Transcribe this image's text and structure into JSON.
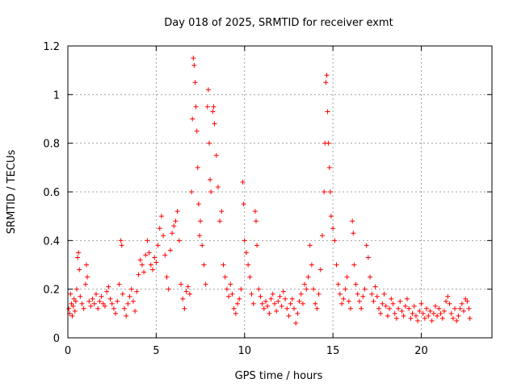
{
  "chart_data": {
    "type": "scatter",
    "title": "Day 018 of 2025, SRMTID for receiver exmt",
    "xlabel": "GPS time / hours",
    "ylabel": "SRMTID / TECUs",
    "xlim": [
      0,
      24
    ],
    "ylim": [
      0,
      1.2
    ],
    "xticks": [
      0,
      5,
      10,
      15,
      20
    ],
    "xtick_labels": [
      "0",
      "5",
      "10",
      "15",
      "20"
    ],
    "yticks": [
      0,
      0.2,
      0.4,
      0.6,
      0.8,
      1.0,
      1.2
    ],
    "ytick_labels": [
      "0",
      "0.2",
      "0.4",
      "0.6",
      "0.8",
      "1",
      "1.2"
    ],
    "grid": true,
    "marker": "+",
    "color": "#ff0000",
    "series": [
      {
        "name": "SRMTID",
        "points": [
          [
            0.05,
            0.12
          ],
          [
            0.1,
            0.1
          ],
          [
            0.15,
            0.18
          ],
          [
            0.2,
            0.14
          ],
          [
            0.25,
            0.09
          ],
          [
            0.3,
            0.13
          ],
          [
            0.35,
            0.16
          ],
          [
            0.4,
            0.11
          ],
          [
            0.45,
            0.15
          ],
          [
            0.5,
            0.2
          ],
          [
            0.55,
            0.33
          ],
          [
            0.6,
            0.35
          ],
          [
            0.65,
            0.28
          ],
          [
            0.7,
            0.17
          ],
          [
            0.8,
            0.14
          ],
          [
            0.9,
            0.12
          ],
          [
            1.0,
            0.22
          ],
          [
            1.05,
            0.3
          ],
          [
            1.1,
            0.25
          ],
          [
            1.2,
            0.15
          ],
          [
            1.3,
            0.13
          ],
          [
            1.4,
            0.16
          ],
          [
            1.5,
            0.14
          ],
          [
            1.6,
            0.18
          ],
          [
            1.7,
            0.12
          ],
          [
            1.8,
            0.15
          ],
          [
            1.9,
            0.17
          ],
          [
            2.0,
            0.14
          ],
          [
            2.1,
            0.13
          ],
          [
            2.2,
            0.19
          ],
          [
            2.3,
            0.21
          ],
          [
            2.4,
            0.16
          ],
          [
            2.5,
            0.14
          ],
          [
            2.6,
            0.12
          ],
          [
            2.7,
            0.1
          ],
          [
            2.8,
            0.15
          ],
          [
            2.9,
            0.22
          ],
          [
            3.0,
            0.4
          ],
          [
            3.05,
            0.38
          ],
          [
            3.1,
            0.18
          ],
          [
            3.2,
            0.12
          ],
          [
            3.3,
            0.09
          ],
          [
            3.4,
            0.14
          ],
          [
            3.5,
            0.17
          ],
          [
            3.6,
            0.2
          ],
          [
            3.7,
            0.15
          ],
          [
            3.8,
            0.11
          ],
          [
            3.9,
            0.19
          ],
          [
            4.0,
            0.26
          ],
          [
            4.1,
            0.32
          ],
          [
            4.2,
            0.3
          ],
          [
            4.3,
            0.27
          ],
          [
            4.4,
            0.34
          ],
          [
            4.5,
            0.4
          ],
          [
            4.6,
            0.35
          ],
          [
            4.7,
            0.3
          ],
          [
            4.8,
            0.28
          ],
          [
            4.9,
            0.33
          ],
          [
            5.0,
            0.31
          ],
          [
            5.1,
            0.38
          ],
          [
            5.2,
            0.45
          ],
          [
            5.3,
            0.5
          ],
          [
            5.4,
            0.42
          ],
          [
            5.5,
            0.34
          ],
          [
            5.6,
            0.25
          ],
          [
            5.7,
            0.2
          ],
          [
            5.8,
            0.36
          ],
          [
            5.9,
            0.43
          ],
          [
            6.0,
            0.46
          ],
          [
            6.1,
            0.48
          ],
          [
            6.2,
            0.52
          ],
          [
            6.3,
            0.4
          ],
          [
            6.4,
            0.22
          ],
          [
            6.5,
            0.16
          ],
          [
            6.6,
            0.12
          ],
          [
            6.7,
            0.19
          ],
          [
            6.8,
            0.21
          ],
          [
            6.9,
            0.18
          ],
          [
            7.0,
            0.6
          ],
          [
            7.05,
            0.9
          ],
          [
            7.1,
            1.15
          ],
          [
            7.15,
            1.12
          ],
          [
            7.2,
            1.05
          ],
          [
            7.25,
            0.95
          ],
          [
            7.3,
            0.85
          ],
          [
            7.35,
            0.7
          ],
          [
            7.4,
            0.55
          ],
          [
            7.45,
            0.42
          ],
          [
            7.5,
            0.48
          ],
          [
            7.6,
            0.38
          ],
          [
            7.7,
            0.3
          ],
          [
            7.8,
            0.22
          ],
          [
            7.9,
            0.95
          ],
          [
            7.95,
            1.02
          ],
          [
            8.0,
            0.8
          ],
          [
            8.05,
            0.65
          ],
          [
            8.1,
            0.6
          ],
          [
            8.2,
            0.93
          ],
          [
            8.25,
            0.95
          ],
          [
            8.3,
            0.88
          ],
          [
            8.4,
            0.75
          ],
          [
            8.5,
            0.62
          ],
          [
            8.6,
            0.48
          ],
          [
            8.7,
            0.52
          ],
          [
            8.8,
            0.3
          ],
          [
            8.9,
            0.25
          ],
          [
            9.0,
            0.2
          ],
          [
            9.1,
            0.17
          ],
          [
            9.2,
            0.22
          ],
          [
            9.3,
            0.18
          ],
          [
            9.4,
            0.12
          ],
          [
            9.5,
            0.1
          ],
          [
            9.6,
            0.14
          ],
          [
            9.7,
            0.16
          ],
          [
            9.8,
            0.2
          ],
          [
            9.9,
            0.64
          ],
          [
            9.95,
            0.55
          ],
          [
            10.0,
            0.4
          ],
          [
            10.1,
            0.35
          ],
          [
            10.2,
            0.3
          ],
          [
            10.3,
            0.25
          ],
          [
            10.4,
            0.18
          ],
          [
            10.5,
            0.14
          ],
          [
            10.6,
            0.52
          ],
          [
            10.65,
            0.48
          ],
          [
            10.7,
            0.38
          ],
          [
            10.8,
            0.2
          ],
          [
            10.9,
            0.17
          ],
          [
            11.0,
            0.14
          ],
          [
            11.1,
            0.12
          ],
          [
            11.2,
            0.15
          ],
          [
            11.3,
            0.13
          ],
          [
            11.4,
            0.1
          ],
          [
            11.5,
            0.16
          ],
          [
            11.6,
            0.18
          ],
          [
            11.7,
            0.14
          ],
          [
            11.8,
            0.11
          ],
          [
            11.9,
            0.15
          ],
          [
            12.0,
            0.17
          ],
          [
            12.1,
            0.13
          ],
          [
            12.2,
            0.19
          ],
          [
            12.3,
            0.16
          ],
          [
            12.4,
            0.12
          ],
          [
            12.5,
            0.09
          ],
          [
            12.6,
            0.14
          ],
          [
            12.7,
            0.16
          ],
          [
            12.8,
            0.12
          ],
          [
            12.9,
            0.06
          ],
          [
            13.0,
            0.1
          ],
          [
            13.1,
            0.15
          ],
          [
            13.2,
            0.18
          ],
          [
            13.3,
            0.14
          ],
          [
            13.4,
            0.22
          ],
          [
            13.5,
            0.2
          ],
          [
            13.6,
            0.25
          ],
          [
            13.7,
            0.38
          ],
          [
            13.8,
            0.3
          ],
          [
            13.9,
            0.2
          ],
          [
            14.0,
            0.14
          ],
          [
            14.1,
            0.12
          ],
          [
            14.2,
            0.18
          ],
          [
            14.3,
            0.28
          ],
          [
            14.4,
            0.42
          ],
          [
            14.5,
            0.6
          ],
          [
            14.55,
            0.8
          ],
          [
            14.6,
            1.05
          ],
          [
            14.65,
            1.08
          ],
          [
            14.7,
            0.93
          ],
          [
            14.75,
            0.8
          ],
          [
            14.8,
            0.7
          ],
          [
            14.85,
            0.6
          ],
          [
            14.9,
            0.5
          ],
          [
            15.0,
            0.45
          ],
          [
            15.1,
            0.4
          ],
          [
            15.2,
            0.3
          ],
          [
            15.3,
            0.22
          ],
          [
            15.4,
            0.18
          ],
          [
            15.5,
            0.14
          ],
          [
            15.6,
            0.16
          ],
          [
            15.7,
            0.2
          ],
          [
            15.8,
            0.25
          ],
          [
            15.9,
            0.15
          ],
          [
            16.0,
            0.12
          ],
          [
            16.1,
            0.48
          ],
          [
            16.15,
            0.43
          ],
          [
            16.2,
            0.3
          ],
          [
            16.3,
            0.22
          ],
          [
            16.4,
            0.18
          ],
          [
            16.5,
            0.15
          ],
          [
            16.6,
            0.12
          ],
          [
            16.7,
            0.17
          ],
          [
            16.8,
            0.2
          ],
          [
            16.9,
            0.38
          ],
          [
            17.0,
            0.33
          ],
          [
            17.1,
            0.25
          ],
          [
            17.2,
            0.18
          ],
          [
            17.3,
            0.15
          ],
          [
            17.4,
            0.21
          ],
          [
            17.5,
            0.17
          ],
          [
            17.6,
            0.12
          ],
          [
            17.7,
            0.1
          ],
          [
            17.8,
            0.14
          ],
          [
            17.9,
            0.18
          ],
          [
            18.0,
            0.13
          ],
          [
            18.1,
            0.09
          ],
          [
            18.2,
            0.12
          ],
          [
            18.3,
            0.16
          ],
          [
            18.4,
            0.14
          ],
          [
            18.5,
            0.1
          ],
          [
            18.6,
            0.08
          ],
          [
            18.7,
            0.12
          ],
          [
            18.8,
            0.15
          ],
          [
            18.9,
            0.11
          ],
          [
            19.0,
            0.09
          ],
          [
            19.1,
            0.13
          ],
          [
            19.2,
            0.16
          ],
          [
            19.3,
            0.12
          ],
          [
            19.4,
            0.08
          ],
          [
            19.5,
            0.1
          ],
          [
            19.6,
            0.13
          ],
          [
            19.7,
            0.09
          ],
          [
            19.8,
            0.07
          ],
          [
            19.9,
            0.11
          ],
          [
            20.0,
            0.14
          ],
          [
            20.1,
            0.1
          ],
          [
            20.2,
            0.08
          ],
          [
            20.3,
            0.12
          ],
          [
            20.4,
            0.09
          ],
          [
            20.5,
            0.11
          ],
          [
            20.6,
            0.07
          ],
          [
            20.7,
            0.1
          ],
          [
            20.8,
            0.13
          ],
          [
            20.9,
            0.09
          ],
          [
            21.0,
            0.12
          ],
          [
            21.1,
            0.1
          ],
          [
            21.2,
            0.08
          ],
          [
            21.3,
            0.11
          ],
          [
            21.4,
            0.15
          ],
          [
            21.5,
            0.17
          ],
          [
            21.6,
            0.14
          ],
          [
            21.7,
            0.1
          ],
          [
            21.8,
            0.08
          ],
          [
            21.9,
            0.12
          ],
          [
            22.0,
            0.07
          ],
          [
            22.1,
            0.09
          ],
          [
            22.2,
            0.12
          ],
          [
            22.3,
            0.14
          ],
          [
            22.4,
            0.11
          ],
          [
            22.5,
            0.16
          ],
          [
            22.6,
            0.15
          ],
          [
            22.7,
            0.12
          ],
          [
            22.75,
            0.08
          ]
        ]
      }
    ]
  }
}
